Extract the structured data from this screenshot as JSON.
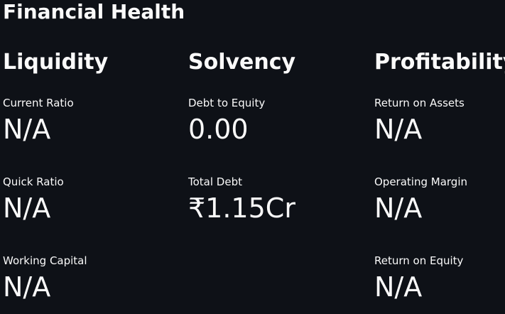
{
  "header": {
    "title": "Financial Health"
  },
  "columns": [
    {
      "title": "Liquidity",
      "metrics": [
        {
          "label": "Current Ratio",
          "value": "N/A"
        },
        {
          "label": "Quick Ratio",
          "value": "N/A"
        },
        {
          "label": "Working Capital",
          "value": "N/A"
        }
      ]
    },
    {
      "title": "Solvency",
      "metrics": [
        {
          "label": "Debt to Equity",
          "value": "0.00"
        },
        {
          "label": "Total Debt",
          "value": "₹1.15Cr"
        }
      ]
    },
    {
      "title": "Profitability",
      "metrics": [
        {
          "label": "Return on Assets",
          "value": "N/A"
        },
        {
          "label": "Operating Margin",
          "value": "N/A"
        },
        {
          "label": "Return on Equity",
          "value": "N/A"
        }
      ]
    }
  ],
  "theme": {
    "background": "#0e1117",
    "text": "#fafafa"
  }
}
